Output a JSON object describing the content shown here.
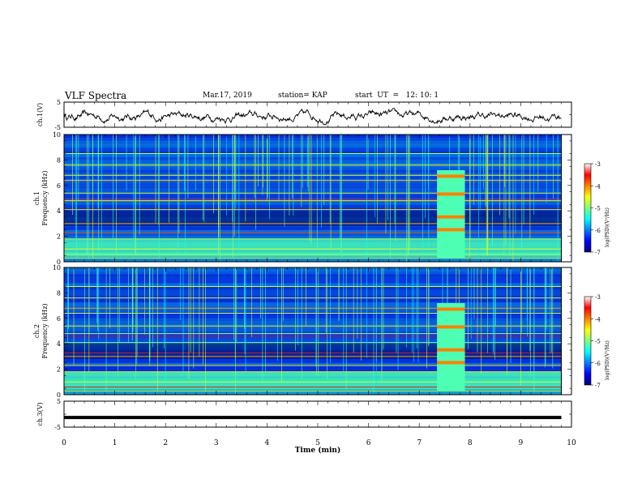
{
  "header": {
    "title": "VLF Spectra",
    "date": "Mar.17, 2019",
    "station": "station= KAP",
    "start_ut": "start  UT  =   12: 10: 1"
  },
  "chart_data": [
    {
      "type": "line",
      "panel": "ch1-waveform",
      "ylabel": "ch.1(V)",
      "xlim": [
        0,
        10
      ],
      "ylim": [
        -5,
        5
      ],
      "yticks": [
        "5",
        "-5"
      ],
      "x_end": 9.8,
      "series": [
        {
          "description": "noisy waveform",
          "mean": -0.5,
          "amplitude_range": [
            -4,
            2.5
          ],
          "color": "#000000"
        }
      ]
    },
    {
      "type": "heatmap",
      "panel": "ch1-spectrogram",
      "ylabel": "ch.1 Frequency (kHz)",
      "xlim": [
        0,
        10
      ],
      "ylim": [
        0,
        10
      ],
      "yticks": [
        "0",
        "2",
        "4",
        "6",
        "8",
        "10"
      ],
      "x_end": 9.8,
      "colorbar": {
        "label": "log(PSD)(V²/Hz)",
        "ticks": [
          "-3",
          "-4",
          "-5",
          "-6",
          "-7"
        ],
        "range": [
          -7,
          -3
        ]
      },
      "bright_block_min": [
        7.35,
        7.9
      ]
    },
    {
      "type": "heatmap",
      "panel": "ch2-spectrogram",
      "ylabel": "ch.2 Frequency (kHz)",
      "xlim": [
        0,
        10
      ],
      "ylim": [
        0,
        10
      ],
      "yticks": [
        "0",
        "2",
        "4",
        "6",
        "8",
        "10"
      ],
      "x_end": 9.8,
      "colorbar": {
        "label": "log(PSD)(V²/Hz)",
        "ticks": [
          "-3",
          "-4",
          "-5",
          "-6",
          "-7"
        ],
        "range": [
          -7,
          -3
        ]
      },
      "bright_block_min": [
        7.35,
        7.9
      ]
    },
    {
      "type": "line",
      "panel": "ch3-waveform",
      "ylabel": "ch.3(V)",
      "xlim": [
        0,
        10
      ],
      "ylim": [
        -5,
        5
      ],
      "yticks": [
        "5",
        "-5"
      ],
      "x_end": 9.8,
      "series": [
        {
          "description": "flat thick line",
          "value": -1.3,
          "color": "#000000"
        }
      ]
    }
  ],
  "x_axis": {
    "label": "Time  (min)",
    "ticks": [
      "0",
      "1",
      "2",
      "3",
      "4",
      "5",
      "6",
      "7",
      "8",
      "9",
      "10"
    ]
  }
}
